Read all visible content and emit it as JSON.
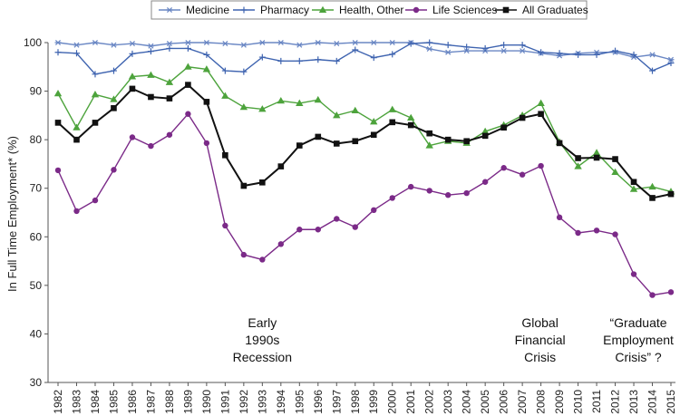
{
  "chart_data": {
    "type": "line",
    "ylabel": "In Full Time Employment* (%)",
    "ylim": [
      30,
      100
    ],
    "yticks": [
      30,
      40,
      50,
      60,
      70,
      80,
      90,
      100
    ],
    "x": [
      "1982",
      "1983",
      "1984",
      "1985",
      "1986",
      "1987",
      "1988",
      "1989",
      "1990",
      "1991",
      "1992",
      "1993",
      "1994",
      "1995",
      "1996",
      "1997",
      "1998",
      "1999",
      "2000",
      "2001",
      "2002",
      "2003",
      "2004",
      "2005",
      "2006",
      "2007",
      "2008",
      "2009",
      "2010",
      "2011",
      "2012",
      "2013",
      "2014",
      "2015"
    ],
    "grid": false,
    "legend_position": "top",
    "series": [
      {
        "name": "Medicine",
        "color": "#6a87c4",
        "marker": "star",
        "values": [
          100.0,
          99.5,
          100.0,
          99.5,
          99.8,
          99.3,
          99.8,
          100.0,
          100.0,
          99.8,
          99.5,
          100.0,
          100.0,
          99.5,
          100.0,
          99.8,
          100.0,
          100.0,
          100.0,
          100.0,
          98.7,
          98.0,
          98.3,
          98.3,
          98.3,
          98.3,
          97.8,
          97.3,
          97.8,
          98.0,
          98.0,
          97.0,
          97.5,
          96.5
        ]
      },
      {
        "name": "Pharmacy",
        "color": "#3f64b0",
        "marker": "plus",
        "values": [
          98.0,
          97.8,
          93.5,
          94.2,
          97.7,
          98.2,
          98.8,
          98.8,
          97.5,
          94.2,
          94.0,
          97.0,
          96.2,
          96.2,
          96.5,
          96.2,
          98.5,
          96.9,
          97.6,
          99.8,
          100.0,
          99.5,
          99.1,
          98.8,
          99.5,
          99.5,
          98.0,
          97.8,
          97.5,
          97.5,
          98.3,
          97.5,
          94.2,
          95.8
        ]
      },
      {
        "name": "Health, Other",
        "color": "#4da33c",
        "marker": "triangle",
        "values": [
          89.5,
          82.5,
          89.3,
          88.3,
          93.0,
          93.3,
          91.8,
          95.0,
          94.5,
          89.0,
          86.7,
          86.3,
          88.0,
          87.5,
          88.2,
          85.0,
          86.0,
          83.7,
          86.2,
          84.5,
          78.8,
          79.7,
          79.3,
          81.7,
          83.0,
          85.0,
          87.5,
          79.5,
          74.5,
          77.3,
          73.3,
          69.8,
          70.3,
          69.3
        ]
      },
      {
        "name": "Life Sciences",
        "color": "#7b2a88",
        "marker": "circle",
        "values": [
          73.7,
          65.3,
          67.5,
          73.8,
          80.5,
          78.7,
          81.0,
          85.3,
          79.3,
          62.3,
          56.3,
          55.3,
          58.5,
          61.5,
          61.5,
          63.7,
          62.0,
          65.5,
          68.0,
          70.3,
          69.5,
          68.6,
          69.0,
          71.3,
          74.2,
          72.8,
          74.6,
          64.0,
          60.8,
          61.3,
          60.5,
          52.3,
          48.0,
          48.6
        ]
      },
      {
        "name": "All Graduates",
        "color": "#111111",
        "marker": "square",
        "values": [
          83.5,
          80.0,
          83.5,
          86.5,
          90.5,
          88.8,
          88.5,
          91.3,
          87.8,
          76.8,
          70.5,
          71.2,
          74.5,
          78.8,
          80.6,
          79.2,
          79.7,
          81.0,
          83.6,
          83.0,
          81.3,
          80.0,
          79.7,
          80.8,
          82.5,
          84.5,
          85.3,
          79.3,
          76.2,
          76.3,
          76.0,
          71.3,
          68.0,
          68.8
        ]
      }
    ],
    "annotations": [
      {
        "id": "early-1990s",
        "lines": [
          "Early",
          "1990s",
          "Recession"
        ],
        "x": "1993",
        "y": 40
      },
      {
        "id": "gfc",
        "lines": [
          "Global",
          "Financial",
          "Crisis"
        ],
        "x": "2008",
        "y": 40
      },
      {
        "id": "gec",
        "lines": [
          "“Graduate",
          "Employment",
          "Crisis” ?"
        ],
        "x": "2013",
        "y": 40
      }
    ]
  }
}
